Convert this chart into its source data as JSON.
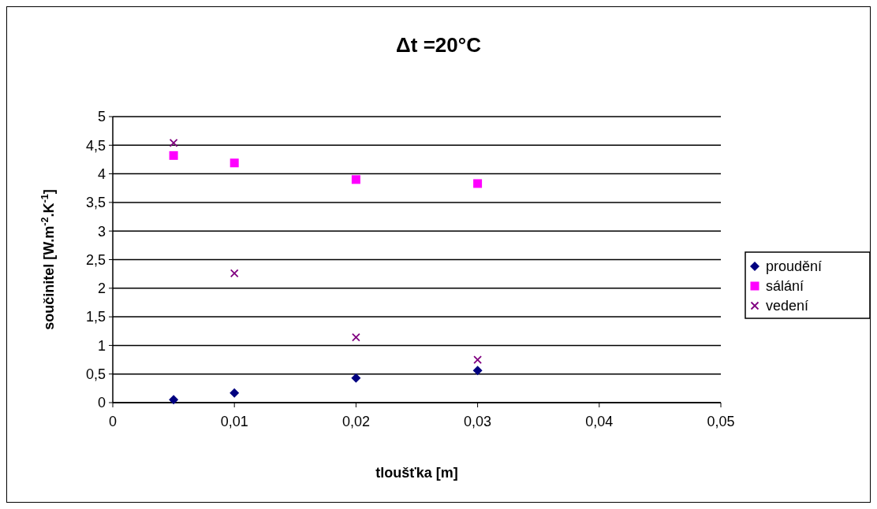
{
  "chart_data": {
    "type": "scatter",
    "title": "Δt =20°C",
    "xlabel": "tloušťka [m]",
    "ylabel": "součinitel [W.m$^{-2}$.K$^{-1}$]",
    "x": [
      0.005,
      0.01,
      0.02,
      0.03
    ],
    "series": [
      {
        "name": "proudění",
        "color": "#000080",
        "marker": "diamond",
        "values": [
          0.05,
          0.17,
          0.43,
          0.56
        ]
      },
      {
        "name": "sálání",
        "color": "#ff00ff",
        "marker": "square",
        "values": [
          4.32,
          4.19,
          3.9,
          3.83
        ]
      },
      {
        "name": "vedení",
        "color": "#800080",
        "marker": "cross",
        "values": [
          4.54,
          2.26,
          1.14,
          0.75
        ]
      }
    ],
    "xlim": [
      0,
      0.05
    ],
    "xticks": [
      {
        "value": 0,
        "label": "0"
      },
      {
        "value": 0.01,
        "label": "0,01"
      },
      {
        "value": 0.02,
        "label": "0,02"
      },
      {
        "value": 0.03,
        "label": "0,03"
      },
      {
        "value": 0.04,
        "label": "0,04"
      },
      {
        "value": 0.05,
        "label": "0,05"
      }
    ],
    "ylim": [
      0,
      5
    ],
    "yticks": [
      0,
      {
        "value": 0.5,
        "label": "0,5"
      },
      1,
      {
        "value": 1.5,
        "label": "1,5"
      },
      2,
      {
        "value": 2.5,
        "label": "2,5"
      },
      3,
      {
        "value": 3.5,
        "label": "3,5"
      },
      4,
      {
        "value": 4.5,
        "label": "4,5"
      },
      5
    ],
    "grid": "y",
    "legend": "right"
  }
}
